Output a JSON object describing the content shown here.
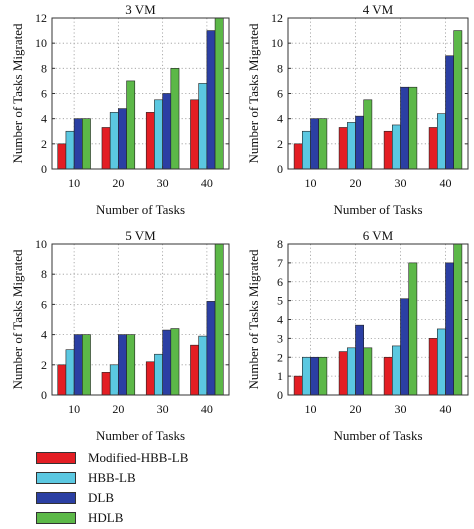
{
  "colors": {
    "Modified-HBB-LB": "#e31e24",
    "HBB-LB": "#5bc8e1",
    "DLB": "#2b3fa3",
    "HDLB": "#5cb848"
  },
  "legend": [
    {
      "name": "Modified-HBB-LB",
      "color": "#e31e24"
    },
    {
      "name": "HBB-LB",
      "color": "#5bc8e1"
    },
    {
      "name": "DLB",
      "color": "#2b3fa3"
    },
    {
      "name": "HDLB",
      "color": "#5cb848"
    }
  ],
  "chart_data": [
    {
      "type": "bar",
      "title": "3 VM",
      "xlabel": "Number of Tasks",
      "ylabel": "Number of Tasks Migrated",
      "categories": [
        "10",
        "20",
        "30",
        "40"
      ],
      "ylim": [
        0,
        12
      ],
      "yticks": [
        0,
        2,
        4,
        6,
        8,
        10,
        12
      ],
      "grid": true,
      "series": [
        {
          "name": "Modified-HBB-LB",
          "values": [
            2.0,
            3.3,
            4.5,
            5.5
          ]
        },
        {
          "name": "HBB-LB",
          "values": [
            3.0,
            4.5,
            5.5,
            6.8
          ]
        },
        {
          "name": "DLB",
          "values": [
            4.0,
            4.8,
            6.0,
            11.0
          ]
        },
        {
          "name": "HDLB",
          "values": [
            4.0,
            7.0,
            8.0,
            12.0
          ]
        }
      ]
    },
    {
      "type": "bar",
      "title": "4 VM",
      "xlabel": "Number of Tasks",
      "ylabel": "Number of Tasks Migrated",
      "categories": [
        "10",
        "20",
        "30",
        "40"
      ],
      "ylim": [
        0,
        12
      ],
      "yticks": [
        0,
        2,
        4,
        6,
        8,
        10,
        12
      ],
      "grid": true,
      "series": [
        {
          "name": "Modified-HBB-LB",
          "values": [
            2.0,
            3.3,
            3.0,
            3.3
          ]
        },
        {
          "name": "HBB-LB",
          "values": [
            3.0,
            3.7,
            3.5,
            4.4
          ]
        },
        {
          "name": "DLB",
          "values": [
            4.0,
            4.2,
            6.5,
            9.0
          ]
        },
        {
          "name": "HDLB",
          "values": [
            4.0,
            5.5,
            6.5,
            11.0
          ]
        }
      ]
    },
    {
      "type": "bar",
      "title": "5 VM",
      "xlabel": "Number of Tasks",
      "ylabel": "Number of Tasks Migrated",
      "categories": [
        "10",
        "20",
        "30",
        "40"
      ],
      "ylim": [
        0,
        10
      ],
      "yticks": [
        0,
        2,
        4,
        6,
        8,
        10
      ],
      "grid": true,
      "series": [
        {
          "name": "Modified-HBB-LB",
          "values": [
            2.0,
            1.5,
            2.2,
            3.3
          ]
        },
        {
          "name": "HBB-LB",
          "values": [
            3.0,
            2.0,
            2.7,
            3.9
          ]
        },
        {
          "name": "DLB",
          "values": [
            4.0,
            4.0,
            4.3,
            6.2
          ]
        },
        {
          "name": "HDLB",
          "values": [
            4.0,
            4.0,
            4.4,
            10.0
          ]
        }
      ]
    },
    {
      "type": "bar",
      "title": "6 VM",
      "xlabel": "Number of Tasks",
      "ylabel": "Number of Tasks Migrated",
      "categories": [
        "10",
        "20",
        "30",
        "40"
      ],
      "ylim": [
        0,
        8
      ],
      "yticks": [
        0,
        1,
        2,
        3,
        4,
        5,
        6,
        7,
        8
      ],
      "grid": true,
      "series": [
        {
          "name": "Modified-HBB-LB",
          "values": [
            1.0,
            2.3,
            2.0,
            3.0
          ]
        },
        {
          "name": "HBB-LB",
          "values": [
            2.0,
            2.5,
            2.6,
            3.5
          ]
        },
        {
          "name": "DLB",
          "values": [
            2.0,
            3.7,
            5.1,
            7.0
          ]
        },
        {
          "name": "HDLB",
          "values": [
            2.0,
            2.5,
            7.0,
            8.0
          ]
        }
      ]
    }
  ]
}
